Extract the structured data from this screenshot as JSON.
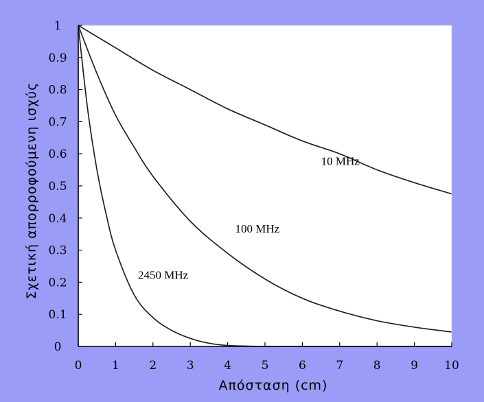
{
  "chart_data": {
    "type": "line",
    "title": "",
    "xlabel": "Απόσταση (cm)",
    "ylabel": "Σχετική απορροφούμενη ισχύς",
    "xlim": [
      0,
      10
    ],
    "ylim": [
      0,
      1
    ],
    "x_ticks": [
      0,
      1,
      2,
      3,
      4,
      5,
      6,
      7,
      8,
      9,
      10
    ],
    "y_ticks": [
      0,
      0.1,
      0.2,
      0.3,
      0.4,
      0.5,
      0.6,
      0.7,
      0.8,
      0.9,
      1
    ],
    "y_tick_labels": [
      "0",
      "0.1",
      "0.2",
      "0.3",
      "0.4",
      "0.5",
      "0.6",
      "0.7",
      "0.8",
      "0.9",
      "1"
    ],
    "grid": false,
    "line_color": "#222222",
    "plot_background": "#ffffff",
    "page_background": "#9b9cf8",
    "series": [
      {
        "name": "10 MHz",
        "x": [
          0,
          1,
          2,
          3,
          4,
          5,
          6,
          7,
          8,
          9,
          10
        ],
        "values": [
          1.0,
          0.93,
          0.86,
          0.8,
          0.74,
          0.69,
          0.64,
          0.6,
          0.55,
          0.51,
          0.475
        ]
      },
      {
        "name": "100 MHz",
        "x": [
          0,
          0.5,
          1,
          1.5,
          2,
          3,
          4,
          5,
          6,
          7,
          8,
          9,
          10
        ],
        "values": [
          1.0,
          0.85,
          0.72,
          0.62,
          0.53,
          0.39,
          0.29,
          0.21,
          0.15,
          0.11,
          0.08,
          0.06,
          0.045
        ]
      },
      {
        "name": "2450 MHz",
        "x": [
          0,
          0.25,
          0.5,
          0.75,
          1,
          1.5,
          2,
          2.5,
          3,
          3.5,
          4,
          5,
          6,
          7,
          8,
          9,
          10
        ],
        "values": [
          1.0,
          0.74,
          0.55,
          0.41,
          0.3,
          0.16,
          0.09,
          0.05,
          0.025,
          0.01,
          0.003,
          0.0,
          0.0,
          0.0,
          0.0,
          0.0,
          0.0
        ]
      }
    ],
    "annotations": [
      {
        "text": "10 MHz",
        "x": 6.5,
        "y": 0.565
      },
      {
        "text": "100 MHz",
        "x": 4.2,
        "y": 0.355
      },
      {
        "text": "2450 MHz",
        "x": 1.6,
        "y": 0.21
      }
    ]
  }
}
